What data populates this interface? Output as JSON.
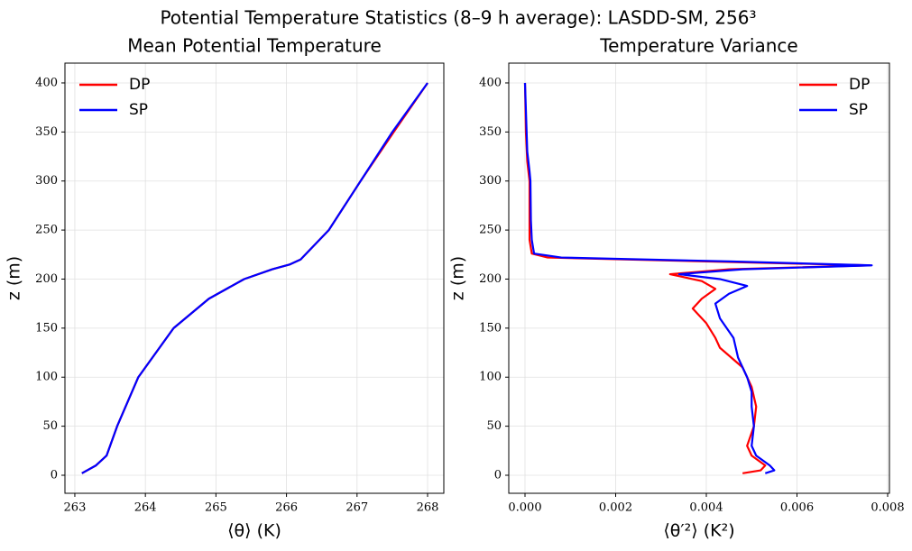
{
  "title": "Potential Temperature Statistics (8–9 h average): LASDD-SM, 256³",
  "chart_data": [
    {
      "type": "line",
      "title": "Mean Potential Temperature",
      "xlabel": "⟨θ⟩ (K)",
      "ylabel": "z (m)",
      "xlim": [
        262.86,
        268.23
      ],
      "ylim": [
        -18.4,
        420.2
      ],
      "xticks": [
        263,
        264,
        265,
        266,
        267,
        268
      ],
      "yticks": [
        0,
        50,
        100,
        150,
        200,
        250,
        300,
        350,
        400
      ],
      "grid": true,
      "legend": "upper left",
      "series": [
        {
          "name": "DP",
          "color": "#ff0000",
          "y": [
            2,
            10,
            20,
            50,
            100,
            150,
            180,
            200,
            210,
            215,
            220,
            250,
            300,
            350,
            400
          ],
          "values": [
            263.1,
            263.3,
            263.45,
            263.6,
            263.9,
            264.4,
            264.9,
            265.4,
            265.8,
            266.05,
            266.2,
            266.6,
            267.05,
            267.52,
            268.0
          ]
        },
        {
          "name": "SP",
          "color": "#0000ff",
          "y": [
            2,
            10,
            20,
            50,
            100,
            150,
            180,
            200,
            210,
            215,
            220,
            250,
            300,
            350,
            400
          ],
          "values": [
            263.1,
            263.3,
            263.45,
            263.6,
            263.9,
            264.4,
            264.9,
            265.4,
            265.8,
            266.05,
            266.2,
            266.6,
            267.05,
            267.5,
            268.0
          ]
        }
      ]
    },
    {
      "type": "line",
      "title": "Temperature Variance",
      "xlabel": "⟨θ′²⟩ (K²)",
      "ylabel": "z (m)",
      "xlim": [
        -0.000358,
        0.00804
      ],
      "ylim": [
        -18.4,
        420.2
      ],
      "xticks": [
        {
          "value": 0,
          "label": "0.000"
        },
        0.002,
        0.004,
        0.006,
        0.008
      ],
      "yticks": [
        0,
        50,
        100,
        150,
        200,
        250,
        300,
        350,
        400
      ],
      "grid": true,
      "legend": "upper right",
      "series": [
        {
          "name": "DP",
          "color": "#ff0000",
          "y": [
            2,
            5,
            10,
            20,
            30,
            50,
            70,
            90,
            100,
            110,
            130,
            140,
            155,
            170,
            180,
            190,
            198,
            205,
            210,
            214,
            218,
            222,
            226,
            240,
            260,
            300,
            320,
            350,
            400
          ],
          "values": [
            0.0048,
            0.0052,
            0.0053,
            0.005,
            0.0049,
            0.00505,
            0.0051,
            0.005,
            0.0049,
            0.0048,
            0.0043,
            0.0042,
            0.004,
            0.0037,
            0.0039,
            0.0042,
            0.0039,
            0.0032,
            0.0045,
            0.0076,
            0.004,
            0.0005,
            0.00015,
            0.0001,
            0.0001,
            0.0001,
            5e-05,
            2e-05,
            0
          ]
        },
        {
          "name": "SP",
          "color": "#0000ff",
          "y": [
            2,
            5,
            10,
            20,
            30,
            50,
            70,
            85,
            100,
            120,
            140,
            160,
            175,
            185,
            193,
            200,
            205,
            210,
            214,
            218,
            222,
            226,
            240,
            260,
            300,
            310,
            330,
            400
          ],
          "values": [
            0.0053,
            0.0055,
            0.0054,
            0.0051,
            0.005,
            0.00505,
            0.005,
            0.005,
            0.0049,
            0.0047,
            0.0046,
            0.0043,
            0.0042,
            0.0045,
            0.0049,
            0.0043,
            0.0034,
            0.0048,
            0.00765,
            0.0045,
            0.0008,
            0.0002,
            0.00015,
            0.00013,
            0.00012,
            0.0001,
            5e-05,
            0
          ]
        }
      ]
    }
  ]
}
